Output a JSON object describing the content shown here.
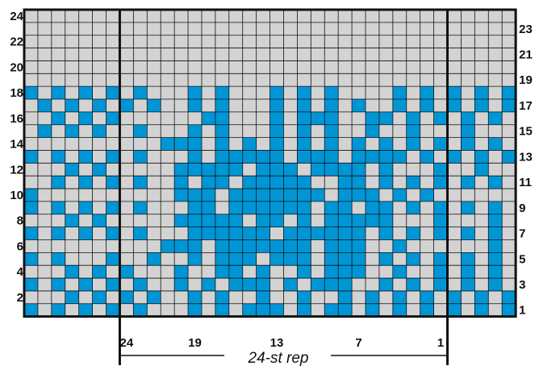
{
  "colors": {
    "background": "#ffffff",
    "empty": "#d3d3d3",
    "filled": "#0096d6",
    "grid": "#111111"
  },
  "chart": {
    "columns": 36,
    "rows": 24,
    "left_row_labels": [
      "2",
      "4",
      "6",
      "8",
      "10",
      "12",
      "14",
      "16",
      "18",
      "20",
      "22",
      "24"
    ],
    "right_row_labels": [
      "1",
      "3",
      "5",
      "7",
      "9",
      "11",
      "13",
      "15",
      "17",
      "19",
      "21",
      "23"
    ],
    "stitch_labels": [
      "24",
      "19",
      "13",
      "7",
      "1"
    ],
    "repeat_label": "24-st rep",
    "grid": [
      "000000000000000000000000000000000000",
      "000000000000000000000000000000000000",
      "000000000000000000000000000000000000",
      "000000000000000000000000000000000000",
      "000000000000000000000000000000000000",
      "000000000000000000000000000000000000",
      "101010101000101000101010000101010101",
      "010101010100101000101010100101010101",
      "001010100000011000101110011010101010",
      "010101001000101000101010010010001000",
      "000000000011101010101010101010101010",
      "101010101000101111101110111101010101",
      "000101000001111101110111101000100100",
      "001010101001011011111001101010101010",
      "100000000001110111111101110101000000",
      "101010101000110111111011011010101010",
      "000101000001111101101011111000100010",
      "101010101000111111011111101010101010",
      "000000000011101111111011100100000010",
      "101000100100101110111011101010101010",
      "000101010001001101001011100100101010",
      "101010101001010111010111001010101010",
      "000101010100101001001001010101010101",
      "101010101000101011101011010101010101"
    ]
  }
}
